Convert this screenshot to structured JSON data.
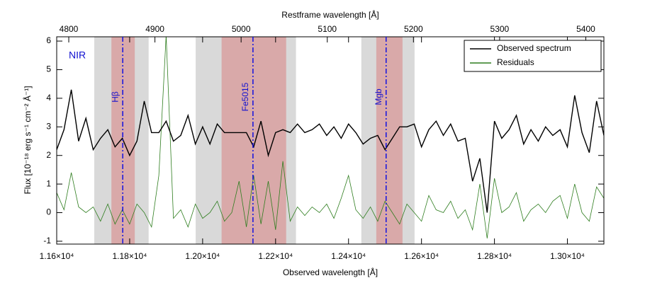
{
  "chart_data": {
    "type": "line",
    "title": "Restframe wavelength [Å]",
    "xlabel": "Observed wavelength [Å]",
    "ylabel": "Flux [10⁻¹⁸ erg s⁻¹ cm⁻² Å⁻¹]",
    "annotation": "NIR",
    "xlim": [
      11600,
      13100
    ],
    "xticks": [
      {
        "value": 11600,
        "label": "1.16×10⁴"
      },
      {
        "value": 11800,
        "label": "1.18×10⁴"
      },
      {
        "value": 12000,
        "label": "1.20×10⁴"
      },
      {
        "value": 12200,
        "label": "1.22×10⁴"
      },
      {
        "value": 12400,
        "label": "1.24×10⁴"
      },
      {
        "value": 12600,
        "label": "1.26×10⁴"
      },
      {
        "value": 12800,
        "label": "1.28×10⁴"
      },
      {
        "value": 13000,
        "label": "1.30×10⁴"
      }
    ],
    "x2lim": [
      4786,
      5421
    ],
    "x2ticks": [
      4800,
      4900,
      5000,
      5100,
      5200,
      5300,
      5400
    ],
    "ylim": [
      -1.1,
      6.15
    ],
    "yticks": [
      -1,
      0,
      1,
      2,
      3,
      4,
      5,
      6
    ],
    "legend": "upper right",
    "bands": [
      {
        "x": [
          11703,
          11852
        ],
        "color": "#d9d9d9"
      },
      {
        "x": [
          11750,
          11814
        ],
        "color": "#d9a9a9"
      },
      {
        "x": [
          11981,
          12256
        ],
        "color": "#d9d9d9"
      },
      {
        "x": [
          12052,
          12229
        ],
        "color": "#d9a9a9"
      },
      {
        "x": [
          12435,
          12581
        ],
        "color": "#d9d9d9"
      },
      {
        "x": [
          12476,
          12548
        ],
        "color": "#d9a9a9"
      }
    ],
    "lines": [
      {
        "label": "Hβ",
        "x": 11781
      },
      {
        "label": "Fe5015",
        "x": 12138
      },
      {
        "label": "Mgb",
        "x": 12503
      }
    ],
    "x": [
      11600,
      11620,
      11640,
      11660,
      11680,
      11700,
      11720,
      11740,
      11760,
      11780,
      11800,
      11820,
      11840,
      11860,
      11880,
      11900,
      11920,
      11940,
      11960,
      11980,
      12000,
      12020,
      12040,
      12060,
      12080,
      12100,
      12120,
      12140,
      12160,
      12180,
      12200,
      12220,
      12240,
      12260,
      12280,
      12300,
      12320,
      12340,
      12360,
      12380,
      12400,
      12420,
      12440,
      12460,
      12480,
      12500,
      12520,
      12540,
      12560,
      12580,
      12600,
      12620,
      12640,
      12660,
      12680,
      12700,
      12720,
      12740,
      12760,
      12780,
      12800,
      12820,
      12840,
      12860,
      12880,
      12900,
      12920,
      12940,
      12960,
      12980,
      13000,
      13020,
      13040,
      13060,
      13080,
      13100
    ],
    "series": [
      {
        "name": "Observed spectrum",
        "color": "#000000",
        "values": [
          2.2,
          2.9,
          4.3,
          2.5,
          3.3,
          2.2,
          2.6,
          2.9,
          2.3,
          2.6,
          2.0,
          2.5,
          3.9,
          2.8,
          2.8,
          3.2,
          2.5,
          2.7,
          3.4,
          2.4,
          3.0,
          2.4,
          3.1,
          2.8,
          2.8,
          2.8,
          2.8,
          2.3,
          3.2,
          2.0,
          2.8,
          2.9,
          2.8,
          3.1,
          2.8,
          2.9,
          3.1,
          2.7,
          3.0,
          2.6,
          3.1,
          2.8,
          2.4,
          2.6,
          2.7,
          2.2,
          2.6,
          3.0,
          3.0,
          3.1,
          2.3,
          2.9,
          3.2,
          2.7,
          3.1,
          2.5,
          2.6,
          1.1,
          1.9,
          0.0,
          3.2,
          2.6,
          2.9,
          3.4,
          2.4,
          2.9,
          2.5,
          3.0,
          2.7,
          2.9,
          2.3,
          4.1,
          2.8,
          2.1,
          3.9,
          2.7
        ]
      },
      {
        "name": "Residuals",
        "color": "#2e7d1e",
        "values": [
          0.7,
          0.1,
          1.4,
          0.2,
          0.0,
          0.2,
          -0.3,
          0.3,
          -0.4,
          0.1,
          -0.4,
          0.3,
          0.0,
          -0.5,
          1.3,
          6.2,
          -0.2,
          0.1,
          -0.5,
          0.3,
          -0.2,
          0.0,
          0.4,
          -0.3,
          0.0,
          1.1,
          -0.5,
          1.3,
          -0.4,
          1.1,
          -0.6,
          1.8,
          -0.3,
          0.2,
          -0.1,
          0.2,
          0.0,
          0.3,
          -0.2,
          0.5,
          1.3,
          0.1,
          -0.2,
          0.2,
          -0.3,
          0.4,
          0.0,
          -0.4,
          0.3,
          0.0,
          -0.3,
          0.6,
          0.1,
          0.0,
          0.4,
          -0.2,
          0.1,
          -0.6,
          1.0,
          -0.9,
          1.2,
          0.0,
          0.2,
          0.7,
          -0.3,
          0.1,
          0.3,
          0.0,
          0.4,
          0.6,
          -0.2,
          1.0,
          0.0,
          -0.3,
          0.9,
          0.5
        ]
      }
    ]
  }
}
